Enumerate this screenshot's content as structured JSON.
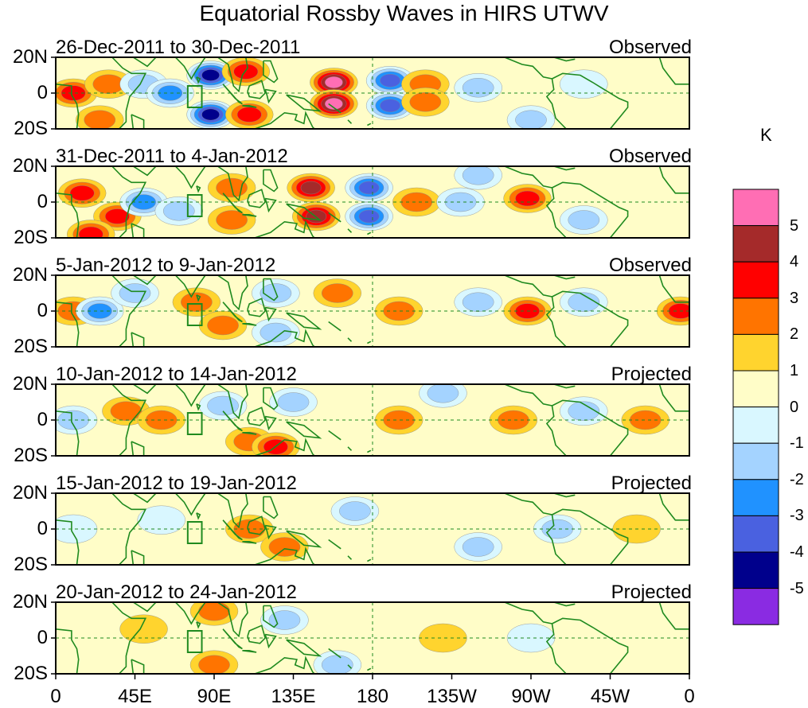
{
  "title": "Equatorial Rossby Waves in HIRS UTWV",
  "colorbar": {
    "unit": "K",
    "ticks": [
      "5",
      "4",
      "3",
      "2",
      "1",
      "0",
      "-1",
      "-2",
      "-3",
      "-4",
      "-5"
    ],
    "colors": [
      "#FF6EB4",
      "#A52A2A",
      "#FF0000",
      "#FF7400",
      "#FFD42E",
      "#FFFDC8",
      "#D9F7FF",
      "#A4D3FF",
      "#2092FF",
      "#4A61E0",
      "#00008C",
      "#8A2BE2"
    ]
  },
  "axes": {
    "lat_labels": [
      "20N",
      "0",
      "20S"
    ],
    "lon_labels": [
      "0",
      "45E",
      "90E",
      "135E",
      "180",
      "135W",
      "90W",
      "45W",
      "0"
    ]
  },
  "panels": [
    {
      "date_range": "26-Dec-2011 to 30-Dec-2011",
      "status": "Observed",
      "anomalies": [
        {
          "lon": 10,
          "lat": 0,
          "value": 2.5
        },
        {
          "lon": 30,
          "lat": 5,
          "value": 2
        },
        {
          "lon": 25,
          "lat": -15,
          "value": 1.5
        },
        {
          "lon": 50,
          "lat": 5,
          "value": -2
        },
        {
          "lon": 65,
          "lat": 0,
          "value": -2.5
        },
        {
          "lon": 88,
          "lat": 10,
          "value": -4.5
        },
        {
          "lon": 88,
          "lat": -12,
          "value": -4.5
        },
        {
          "lon": 108,
          "lat": 12,
          "value": 3
        },
        {
          "lon": 110,
          "lat": -12,
          "value": 3
        },
        {
          "lon": 158,
          "lat": 6,
          "value": 5
        },
        {
          "lon": 158,
          "lat": -6,
          "value": 5
        },
        {
          "lon": 190,
          "lat": 7,
          "value": -4
        },
        {
          "lon": 190,
          "lat": -7,
          "value": -4
        },
        {
          "lon": 210,
          "lat": 5,
          "value": 1.5
        },
        {
          "lon": 210,
          "lat": -5,
          "value": 1.5
        },
        {
          "lon": 240,
          "lat": 3,
          "value": -1.5
        },
        {
          "lon": 270,
          "lat": -15,
          "value": -2
        },
        {
          "lon": 300,
          "lat": 5,
          "value": -1
        }
      ]
    },
    {
      "date_range": "31-Dec-2011 to 4-Jan-2012",
      "status": "Observed",
      "anomalies": [
        {
          "lon": 15,
          "lat": 5,
          "value": 3
        },
        {
          "lon": 35,
          "lat": -8,
          "value": 2.5
        },
        {
          "lon": 20,
          "lat": -18,
          "value": 3
        },
        {
          "lon": 50,
          "lat": 0,
          "value": -2.5
        },
        {
          "lon": 70,
          "lat": -5,
          "value": -1.5
        },
        {
          "lon": 100,
          "lat": 8,
          "value": 2
        },
        {
          "lon": 100,
          "lat": -10,
          "value": 2
        },
        {
          "lon": 145,
          "lat": 8,
          "value": 3.5
        },
        {
          "lon": 148,
          "lat": -8,
          "value": 3.5
        },
        {
          "lon": 178,
          "lat": 8,
          "value": -3.5
        },
        {
          "lon": 178,
          "lat": -8,
          "value": -3.5
        },
        {
          "lon": 205,
          "lat": 0,
          "value": 2
        },
        {
          "lon": 230,
          "lat": 0,
          "value": -1.5
        },
        {
          "lon": 268,
          "lat": 2,
          "value": 3
        },
        {
          "lon": 240,
          "lat": 15,
          "value": -1.5
        },
        {
          "lon": 300,
          "lat": -10,
          "value": -1.5
        }
      ]
    },
    {
      "date_range": "5-Jan-2012 to 9-Jan-2012",
      "status": "Observed",
      "anomalies": [
        {
          "lon": 10,
          "lat": 0,
          "value": 2
        },
        {
          "lon": 25,
          "lat": 0,
          "value": -2.5
        },
        {
          "lon": 45,
          "lat": 10,
          "value": -1.5
        },
        {
          "lon": 80,
          "lat": 5,
          "value": 2
        },
        {
          "lon": 95,
          "lat": -8,
          "value": 1.5
        },
        {
          "lon": 125,
          "lat": 10,
          "value": -2
        },
        {
          "lon": 125,
          "lat": -12,
          "value": -1.5
        },
        {
          "lon": 160,
          "lat": 10,
          "value": 1.5
        },
        {
          "lon": 195,
          "lat": 0,
          "value": 1.5
        },
        {
          "lon": 240,
          "lat": 5,
          "value": -1.5
        },
        {
          "lon": 268,
          "lat": 0,
          "value": 3
        },
        {
          "lon": 300,
          "lat": 5,
          "value": -1.5
        },
        {
          "lon": 355,
          "lat": 0,
          "value": 3
        }
      ]
    },
    {
      "date_range": "10-Jan-2012 to 14-Jan-2012",
      "status": "Projected",
      "anomalies": [
        {
          "lon": 10,
          "lat": 0,
          "value": -2
        },
        {
          "lon": 40,
          "lat": 5,
          "value": 1.5
        },
        {
          "lon": 60,
          "lat": 0,
          "value": 1.5
        },
        {
          "lon": 95,
          "lat": 8,
          "value": -1.5
        },
        {
          "lon": 110,
          "lat": -12,
          "value": 1.5
        },
        {
          "lon": 125,
          "lat": -15,
          "value": 2.5
        },
        {
          "lon": 135,
          "lat": 10,
          "value": -1.5
        },
        {
          "lon": 195,
          "lat": 0,
          "value": 1.5
        },
        {
          "lon": 220,
          "lat": 15,
          "value": -2
        },
        {
          "lon": 260,
          "lat": 0,
          "value": 1.5
        },
        {
          "lon": 300,
          "lat": 5,
          "value": -1.5
        },
        {
          "lon": 335,
          "lat": 0,
          "value": 1.5
        }
      ]
    },
    {
      "date_range": "15-Jan-2012 to 19-Jan-2012",
      "status": "Projected",
      "anomalies": [
        {
          "lon": 10,
          "lat": 0,
          "value": -1
        },
        {
          "lon": 60,
          "lat": 5,
          "value": -1
        },
        {
          "lon": 110,
          "lat": 0,
          "value": 1.5
        },
        {
          "lon": 130,
          "lat": -10,
          "value": 1.5
        },
        {
          "lon": 170,
          "lat": 10,
          "value": -1.5
        },
        {
          "lon": 240,
          "lat": -10,
          "value": -1.5
        },
        {
          "lon": 285,
          "lat": 0,
          "value": -1.5
        },
        {
          "lon": 330,
          "lat": 0,
          "value": 1
        }
      ]
    },
    {
      "date_range": "20-Jan-2012 to 24-Jan-2012",
      "status": "Projected",
      "anomalies": [
        {
          "lon": 50,
          "lat": 5,
          "value": 1
        },
        {
          "lon": 90,
          "lat": 15,
          "value": 1.5
        },
        {
          "lon": 90,
          "lat": -15,
          "value": 1.5
        },
        {
          "lon": 130,
          "lat": 10,
          "value": -1.5
        },
        {
          "lon": 160,
          "lat": -15,
          "value": -1.5
        },
        {
          "lon": 220,
          "lat": 0,
          "value": 1
        },
        {
          "lon": 270,
          "lat": 0,
          "value": -1
        }
      ]
    }
  ]
}
